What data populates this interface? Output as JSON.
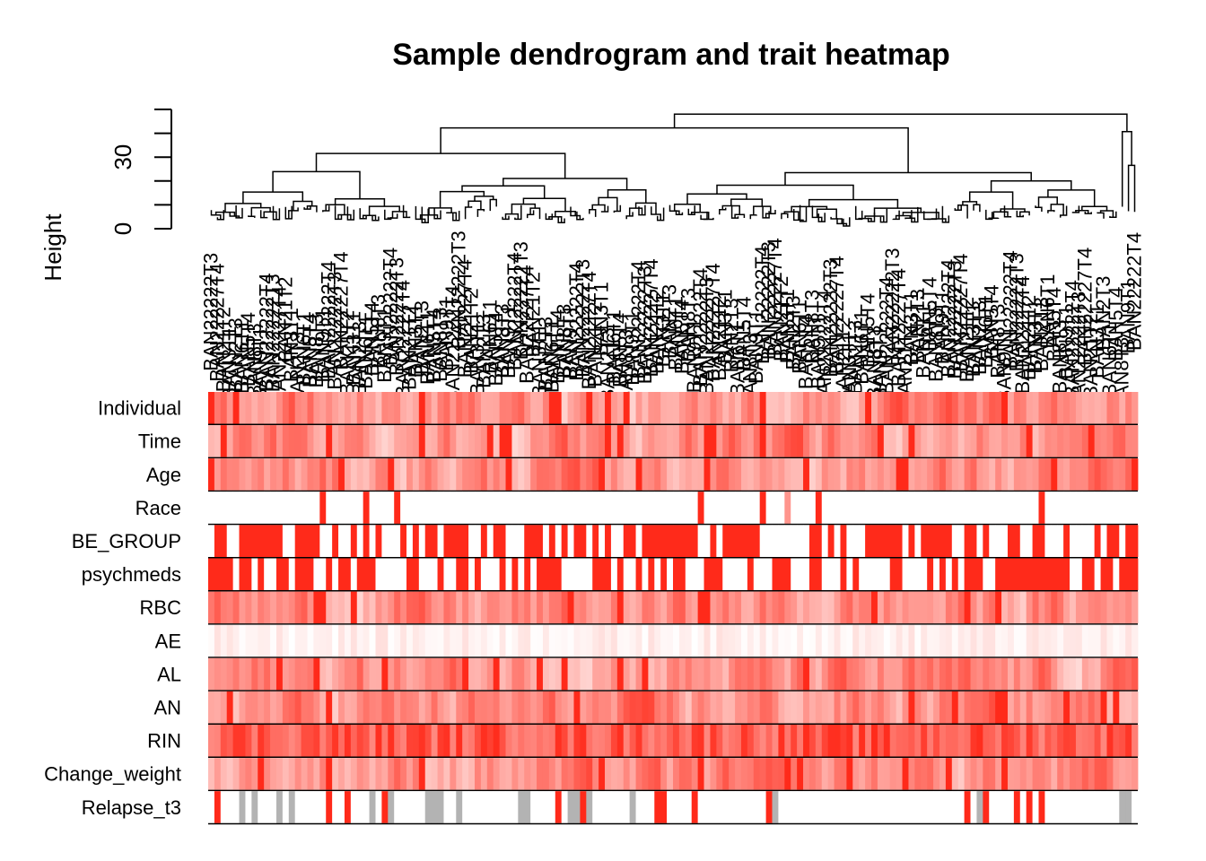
{
  "chart_data": {
    "type": "heatmap",
    "title": "Sample dendrogram and trait heatmap",
    "dendrogram": {
      "ylabel": "Height",
      "yticks": [
        0,
        30
      ],
      "ylim": [
        0,
        50
      ],
      "root_height": 48
    },
    "sample_labels_shown": [
      "BAN22222T3",
      "BAN22227T4",
      "BAN21T2",
      "BAN3T1",
      "BAN2T3",
      "BAN6T1",
      "BAN5T4",
      "BAN8T3",
      "BAN9T1",
      "BAN22222T4"
    ],
    "traits": [
      {
        "name": "Individual",
        "palette": "continuous"
      },
      {
        "name": "Time",
        "palette": "continuous"
      },
      {
        "name": "Age",
        "palette": "continuous"
      },
      {
        "name": "Race",
        "palette": "sparse"
      },
      {
        "name": "BE_GROUP",
        "palette": "binary"
      },
      {
        "name": "psychmeds",
        "palette": "binary"
      },
      {
        "name": "RBC",
        "palette": "continuous"
      },
      {
        "name": "AE",
        "palette": "light"
      },
      {
        "name": "AL",
        "palette": "continuous"
      },
      {
        "name": "AN",
        "palette": "continuous"
      },
      {
        "name": "RIN",
        "palette": "strong"
      },
      {
        "name": "Change_weight",
        "palette": "continuous"
      },
      {
        "name": "Relapse_t3",
        "palette": "relapse"
      }
    ],
    "colors": {
      "high": "#ff2a1a",
      "low": "#ffffff",
      "missing": "#b3b3b3",
      "line": "#000000"
    },
    "n_samples": 150
  }
}
